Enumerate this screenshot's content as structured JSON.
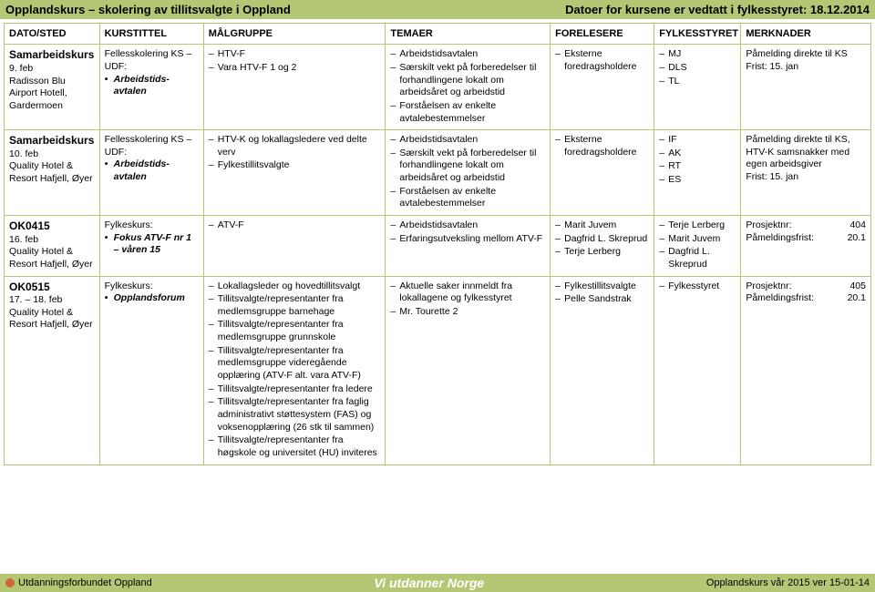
{
  "header": {
    "left": "Opplandskurs – skolering av tillitsvalgte i Oppland",
    "right": "Datoer for kursene er vedtatt i fylkesstyret: 18.12.2014"
  },
  "columns": [
    "DATO/STED",
    "KURSTITTEL",
    "MÅLGRUPPE",
    "TEMAER",
    "FORELESERE",
    "FYLKESSTYRET",
    "MERKNADER"
  ],
  "rows": [
    {
      "dato_title": "Samarbeidskurs",
      "dato_lines": [
        "9. feb",
        "Radisson Blu Airport Hotell, Gardermoen"
      ],
      "kurs_lines": [
        "Fellesskolering KS – UDF:"
      ],
      "kurs_bullets": [
        "Arbeidstids-avtalen"
      ],
      "mal": [
        "HTV-F",
        "Vara HTV-F 1 og 2"
      ],
      "temaer": [
        "Arbeidstidsavtalen",
        "Særskilt vekt på forberedelser til forhandlingene lokalt om arbeidsåret og arbeidstid",
        "Forståelsen av enkelte avtalebestemmelser"
      ],
      "forelesere": [
        "Eksterne foredragsholdere"
      ],
      "fstyret": [
        "MJ",
        "DLS",
        "TL"
      ],
      "merk_text": "Påmelding direkte til KS\nFrist: 15. jan"
    },
    {
      "dato_title": "Samarbeidskurs",
      "dato_lines": [
        "10. feb",
        "Quality Hotel & Resort Hafjell, Øyer"
      ],
      "kurs_lines": [
        "Fellesskolering KS – UDF:"
      ],
      "kurs_bullets": [
        "Arbeidstids-avtalen"
      ],
      "mal": [
        "HTV-K og lokallagsledere ved delte verv",
        "Fylkestillitsvalgte"
      ],
      "temaer": [
        "Arbeidstidsavtalen",
        "Særskilt vekt på forberedelser til forhandlingene lokalt om arbeidsåret og arbeidstid",
        "Forståelsen av enkelte avtalebestemmelser"
      ],
      "forelesere": [
        "Eksterne foredragsholdere"
      ],
      "fstyret": [
        "IF",
        "AK",
        "RT",
        "ES"
      ],
      "merk_text": "Påmelding direkte til KS, HTV-K samsnakker med egen arbeidsgiver\nFrist: 15. jan"
    },
    {
      "dato_title": "OK0415",
      "dato_lines": [
        "16. feb",
        "Quality Hotel & Resort Hafjell, Øyer"
      ],
      "kurs_lines": [
        "Fylkeskurs:"
      ],
      "kurs_bullets": [
        "Fokus ATV-F nr 1 – våren 15"
      ],
      "mal": [
        "ATV-F"
      ],
      "temaer": [
        "Arbeidstidsavtalen",
        "Erfaringsutveksling mellom ATV-F"
      ],
      "forelesere": [
        "Marit Juvem",
        "Dagfrid L. Skreprud",
        "Terje Lerberg"
      ],
      "fstyret": [
        "Terje Lerberg",
        "Marit Juvem",
        "Dagfrid L. Skreprud"
      ],
      "merk_pairs": [
        [
          "Prosjektnr:",
          "404"
        ],
        [
          "Påmeldingsfrist:",
          "20.1"
        ]
      ]
    },
    {
      "dato_title": "OK0515",
      "dato_lines": [
        "17. – 18. feb",
        "Quality Hotel & Resort Hafjell, Øyer"
      ],
      "kurs_lines": [
        "Fylkeskurs:"
      ],
      "kurs_bullets": [
        "Opplandsforum"
      ],
      "mal": [
        "Lokallagsleder og hovedtillitsvalgt",
        "Tillitsvalgte/representanter fra medlemsgruppe barnehage",
        "Tillitsvalgte/representanter fra medlemsgruppe grunnskole",
        "Tillitsvalgte/representanter fra medlemsgruppe videregående opplæring (ATV-F alt. vara ATV-F)",
        "Tillitsvalgte/representanter fra ledere",
        "Tillitsvalgte/representanter fra faglig administrativt støttesystem (FAS) og voksenopplæring (26 stk til sammen)",
        "Tillitsvalgte/representanter fra høgskole og universitet (HU) inviteres"
      ],
      "temaer": [
        "Aktuelle saker innmeldt fra lokallagene og fylkesstyret",
        "Mr. Tourette 2"
      ],
      "forelesere": [
        "Fylkestillitsvalgte",
        "Pelle Sandstrak"
      ],
      "fstyret": [
        "Fylkesstyret"
      ],
      "merk_pairs": [
        [
          "Prosjektnr:",
          "405"
        ],
        [
          "Påmeldingsfrist:",
          "20.1"
        ]
      ]
    }
  ],
  "footer": {
    "left": "Utdanningsforbundet Oppland",
    "center": "Vi utdanner Norge",
    "right": "Opplandskurs vår 2015 ver 15-01-14"
  }
}
